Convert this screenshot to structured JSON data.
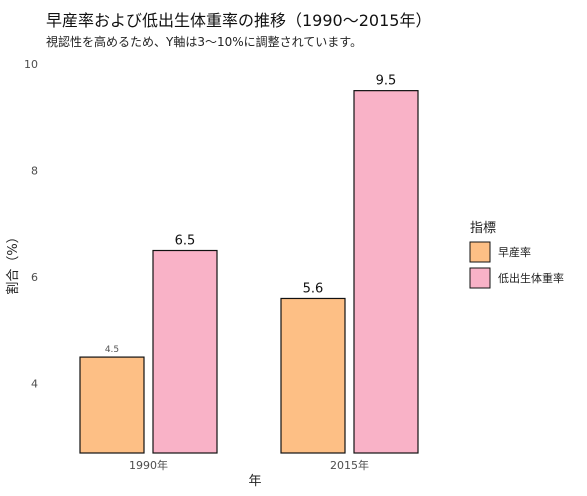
{
  "chart": {
    "title": "早産率および低出生体重率の推移（1990〜2015年）",
    "subtitle": "視認性を高めるため、Y軸は3〜10%に調整されています。"
  },
  "chart_data": {
    "type": "bar",
    "title": "早産率および低出生体重率の推移（1990〜2015年）",
    "subtitle": "視認性を高めるため、Y軸は3〜10%に調整されています。",
    "categories": [
      "1990年",
      "2015年"
    ],
    "series": [
      {
        "name": "早産率",
        "values": [
          4.5,
          5.6
        ],
        "color": "#FDBF85"
      },
      {
        "name": "低出生体重率",
        "values": [
          6.5,
          9.5
        ],
        "color": "#F9B2C7"
      }
    ],
    "data_labels": [
      [
        "4.5",
        "5.6"
      ],
      [
        "6.5",
        "9.5"
      ]
    ],
    "xlabel": "年",
    "ylabel": "割合（%）",
    "ylim": [
      2.7,
      10.0
    ],
    "yticks": [
      4,
      6,
      8,
      10
    ],
    "grid": false,
    "legend": {
      "title": "指標",
      "position": "right"
    }
  }
}
